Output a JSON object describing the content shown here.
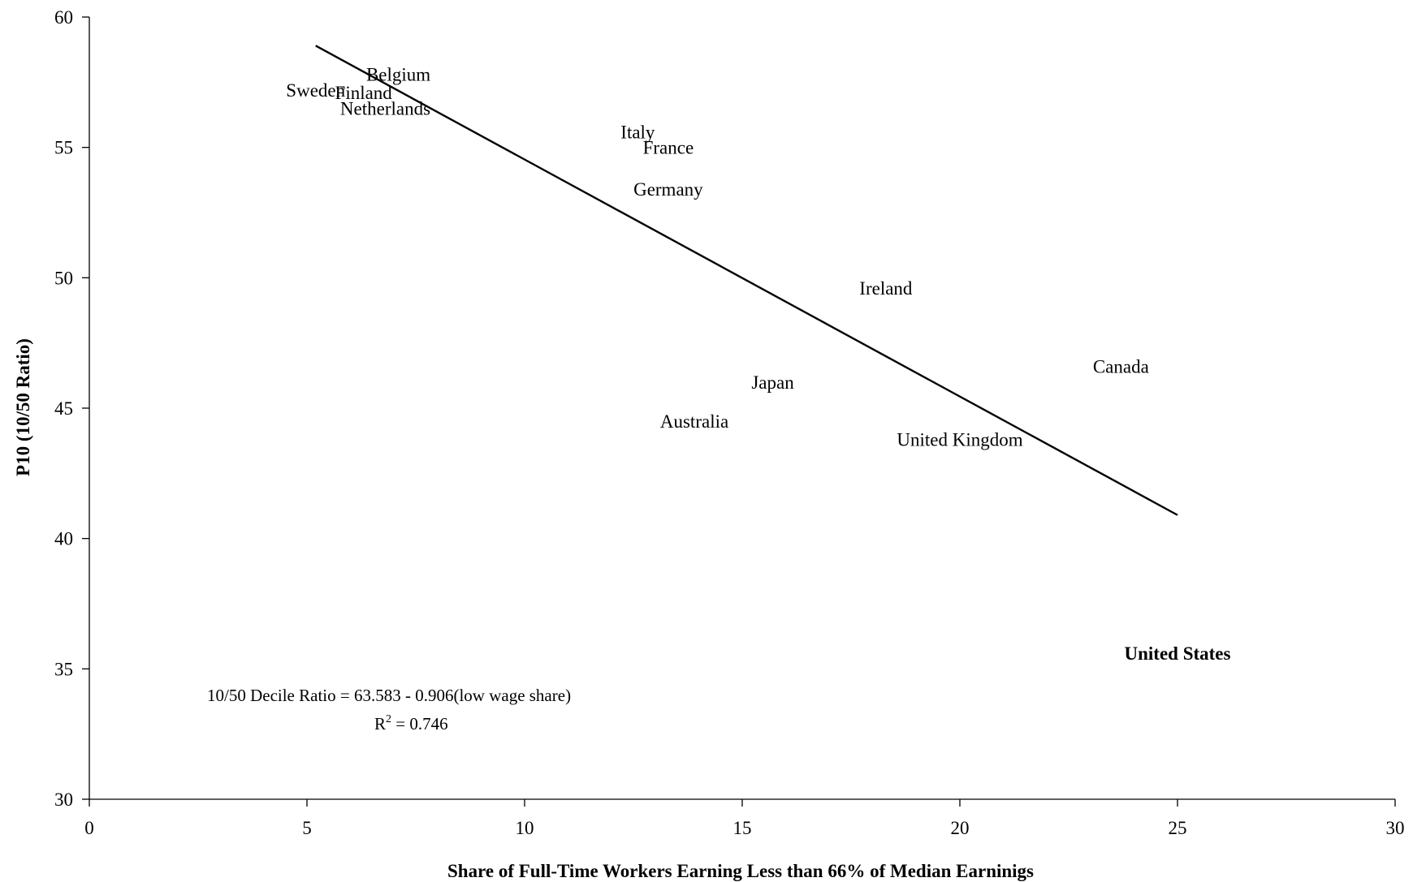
{
  "chart_data": {
    "type": "scatter",
    "xlabel": "Share of Full-Time Workers Earning Less than 66% of Median Earninigs",
    "ylabel": "P10 (10/50 Ratio)",
    "xlim": [
      0,
      30
    ],
    "ylim": [
      30,
      60
    ],
    "x_ticks": [
      0,
      5,
      10,
      15,
      20,
      25,
      30
    ],
    "y_ticks": [
      30,
      35,
      40,
      45,
      50,
      55,
      60
    ],
    "grid": false,
    "points": [
      {
        "label": "Belgium",
        "x": 7.1,
        "y": 57.8,
        "bold": false
      },
      {
        "label": "Sweden",
        "x": 5.2,
        "y": 57.2,
        "bold": false
      },
      {
        "label": "Finland",
        "x": 6.3,
        "y": 57.1,
        "bold": false
      },
      {
        "label": "Netherlands",
        "x": 6.8,
        "y": 56.5,
        "bold": false
      },
      {
        "label": "Italy",
        "x": 12.6,
        "y": 55.6,
        "bold": false
      },
      {
        "label": "France",
        "x": 13.3,
        "y": 55.0,
        "bold": false
      },
      {
        "label": "Germany",
        "x": 13.3,
        "y": 53.4,
        "bold": false
      },
      {
        "label": "Ireland",
        "x": 18.3,
        "y": 49.6,
        "bold": false
      },
      {
        "label": "Canada",
        "x": 23.7,
        "y": 46.6,
        "bold": false
      },
      {
        "label": "Japan",
        "x": 15.7,
        "y": 46.0,
        "bold": false
      },
      {
        "label": "Australia",
        "x": 13.9,
        "y": 44.5,
        "bold": false
      },
      {
        "label": "United Kingdom",
        "x": 20.0,
        "y": 43.8,
        "bold": false
      },
      {
        "label": "United States",
        "x": 25.0,
        "y": 35.6,
        "bold": true
      }
    ],
    "trendline": {
      "x": [
        5.2,
        25.0
      ],
      "y": [
        58.9,
        40.9
      ]
    },
    "annotations": {
      "equation": "10/50 Decile Ratio = 63.583 - 0.906(low wage share)",
      "r_squared_prefix": "R",
      "r_squared_exponent": "2",
      "r_squared_value": " = 0.746"
    }
  }
}
